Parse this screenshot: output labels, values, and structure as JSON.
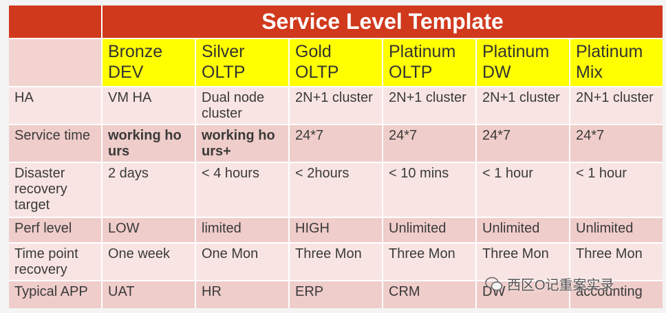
{
  "title": "Service Level Template",
  "header": [
    "Bronze DEV",
    "Silver OLTP",
    "Gold OLTP",
    "Platinum OLTP",
    "Platinum DW",
    "Platinum Mix"
  ],
  "rows": [
    [
      "HA",
      "VM HA",
      "Dual node cluster",
      "2N+1 cluster",
      "2N+1 cluster",
      "2N+1 cluster",
      "2N+1 cluster"
    ],
    [
      "Service time",
      "working hours",
      "working hours+",
      "24*7",
      "24*7",
      "24*7",
      "24*7"
    ],
    [
      "Disaster recovery target",
      "2  days",
      "< 4 hours",
      "< 2hours",
      "< 10 mins",
      "< 1 hour",
      "< 1 hour"
    ],
    [
      "Perf level",
      "LOW",
      "limited",
      "HIGH",
      "Unlimited",
      "Unlimited",
      "Unlimited"
    ],
    [
      "Time point recovery",
      "One week",
      "One Mon",
      "Three Mon",
      "Three Mon",
      "Three Mon",
      "Three Mon"
    ],
    [
      "Typical APP",
      "UAT",
      "HR",
      "ERP",
      "CRM",
      "DW",
      "accounting"
    ]
  ],
  "watermark": "西区O记重案实录"
}
